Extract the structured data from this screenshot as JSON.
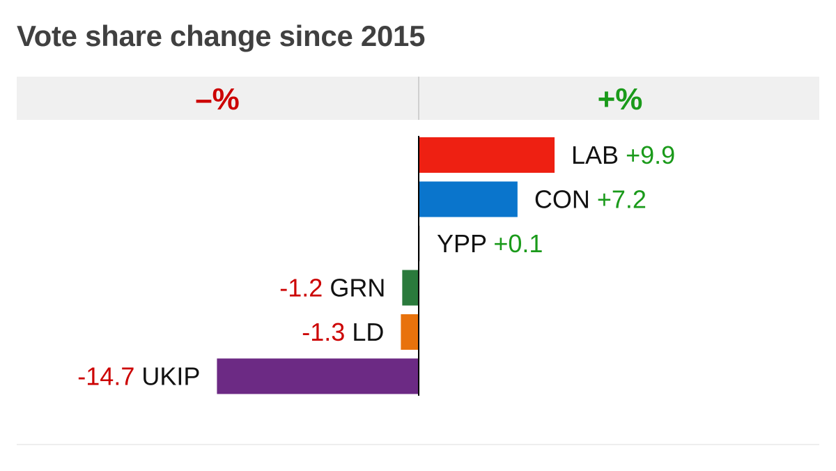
{
  "chart_data": {
    "type": "bar",
    "orientation": "horizontal-diverging",
    "title": "Vote share change since 2015",
    "negative_header": "–%",
    "positive_header": "+%",
    "categories": [
      "LAB",
      "CON",
      "YPP",
      "GRN",
      "LD",
      "UKIP"
    ],
    "values": [
      9.9,
      7.2,
      0.1,
      -1.2,
      -1.3,
      -14.7
    ],
    "value_labels": [
      "+9.9",
      "+7.2",
      "+0.1",
      "-1.2",
      "-1.3",
      "-14.7"
    ],
    "colors": [
      "#ee2012",
      "#0a75cc",
      "#cccccc",
      "#2a7a3c",
      "#e8720c",
      "#6c2a84"
    ],
    "positive_label_color": "#1a9a1a",
    "negative_label_color": "#cc0000",
    "grid": false
  }
}
